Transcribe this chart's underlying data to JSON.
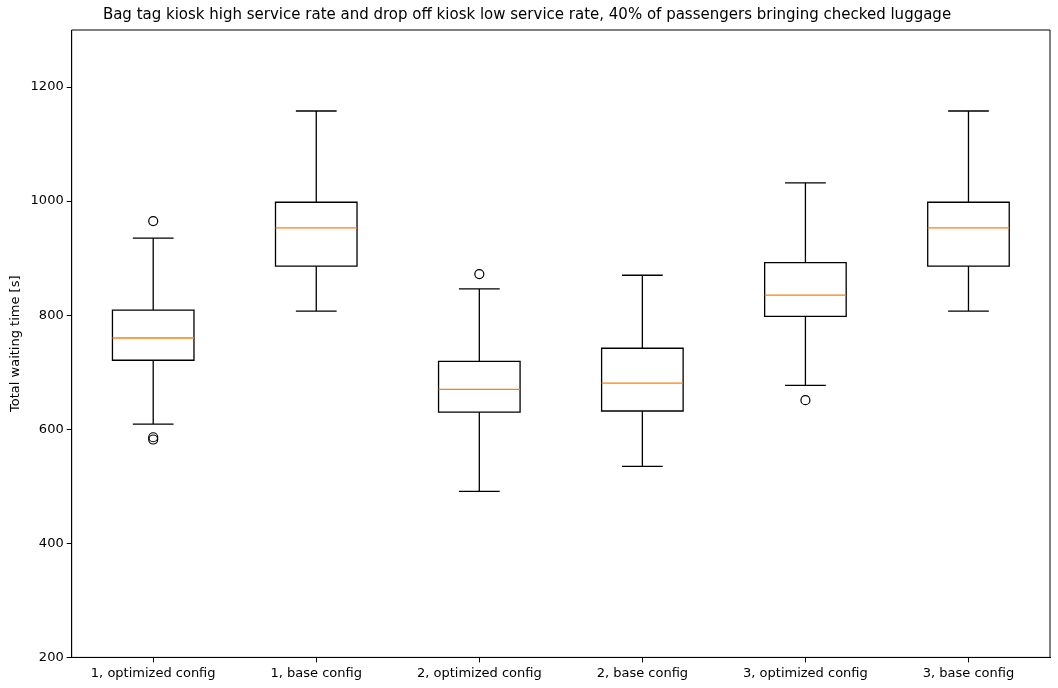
{
  "chart_data": {
    "type": "box",
    "title": "Bag tag kiosk high service rate and drop off kiosk low service rate, 40% of passengers bringing checked luggage",
    "ylabel": "Total waiting time [s]",
    "categories": [
      "1, optimized config",
      "1, base config",
      "2, optimized config",
      "2, base config",
      "3, optimized config",
      "3, base config"
    ],
    "boxes": [
      {
        "low": 609,
        "q1": 721,
        "median": 760,
        "q3": 809,
        "high": 935,
        "outliers": [
          965,
          586,
          582
        ]
      },
      {
        "low": 807,
        "q1": 886,
        "median": 953,
        "q3": 998,
        "high": 1158
      },
      {
        "low": 491,
        "q1": 630,
        "median": 670,
        "q3": 719,
        "high": 846,
        "outliers": [
          872
        ]
      },
      {
        "low": 535,
        "q1": 632,
        "median": 681,
        "q3": 742,
        "high": 870
      },
      {
        "low": 677,
        "q1": 798,
        "median": 835,
        "q3": 892,
        "high": 1032,
        "outliers": [
          651
        ]
      },
      {
        "low": 807,
        "q1": 886,
        "median": 953,
        "q3": 998,
        "high": 1158
      }
    ],
    "ylim": [
      200,
      1300
    ],
    "yticks": [
      200,
      400,
      600,
      800,
      1000,
      1200
    ],
    "grid": false
  }
}
